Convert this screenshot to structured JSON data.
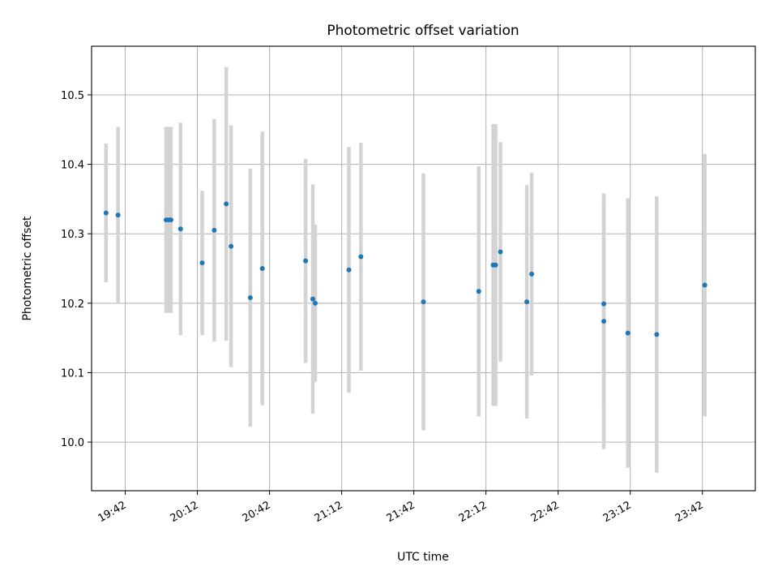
{
  "chart_data": {
    "type": "scatter",
    "title": "Photometric offset variation",
    "xlabel": "UTC time",
    "ylabel": "Photometric offset",
    "xlim": [
      "19:28",
      "24:04"
    ],
    "ylim": [
      9.93,
      10.57
    ],
    "x_ticks": [
      "19:42",
      "20:12",
      "20:42",
      "21:12",
      "21:42",
      "22:12",
      "22:42",
      "23:12",
      "23:42"
    ],
    "y_ticks": [
      10.0,
      10.1,
      10.2,
      10.3,
      10.4,
      10.5
    ],
    "grid": true,
    "colors": {
      "marker": "#1f77b4",
      "errorbar": "#d3d3d3",
      "grid": "#b0b0b0"
    },
    "series": [
      {
        "points": [
          {
            "x": "19:34",
            "y": 10.33,
            "err": 0.1
          },
          {
            "x": "19:39",
            "y": 10.327,
            "err": 0.127
          },
          {
            "x": "19:59",
            "y": 10.32,
            "err": 0.134
          },
          {
            "x": "20:00",
            "y": 10.32,
            "err": 0.134
          },
          {
            "x": "20:01",
            "y": 10.32,
            "err": 0.134
          },
          {
            "x": "20:05",
            "y": 10.307,
            "err": 0.153
          },
          {
            "x": "20:14",
            "y": 10.258,
            "err": 0.104
          },
          {
            "x": "20:19",
            "y": 10.305,
            "err": 0.16
          },
          {
            "x": "20:24",
            "y": 10.343,
            "err": 0.197
          },
          {
            "x": "20:26",
            "y": 10.282,
            "err": 0.174
          },
          {
            "x": "20:34",
            "y": 10.208,
            "err": 0.186
          },
          {
            "x": "20:39",
            "y": 10.25,
            "err": 0.197
          },
          {
            "x": "20:57",
            "y": 10.261,
            "err": 0.147
          },
          {
            "x": "21:00",
            "y": 10.206,
            "err": 0.165
          },
          {
            "x": "21:01",
            "y": 10.2,
            "err": 0.113
          },
          {
            "x": "21:15",
            "y": 10.248,
            "err": 0.177
          },
          {
            "x": "21:20",
            "y": 10.267,
            "err": 0.164
          },
          {
            "x": "21:46",
            "y": 10.202,
            "err": 0.185
          },
          {
            "x": "22:09",
            "y": 10.217,
            "err": 0.18
          },
          {
            "x": "22:15",
            "y": 10.255,
            "err": 0.203
          },
          {
            "x": "22:16",
            "y": 10.255,
            "err": 0.203
          },
          {
            "x": "22:18",
            "y": 10.274,
            "err": 0.158
          },
          {
            "x": "22:29",
            "y": 10.202,
            "err": 0.168
          },
          {
            "x": "22:31",
            "y": 10.242,
            "err": 0.146
          },
          {
            "x": "23:01",
            "y": 10.199,
            "err": 0.143
          },
          {
            "x": "23:01",
            "y": 10.174,
            "err": 0.184
          },
          {
            "x": "23:11",
            "y": 10.157,
            "err": 0.194
          },
          {
            "x": "23:23",
            "y": 10.155,
            "err": 0.199
          },
          {
            "x": "23:43",
            "y": 10.226,
            "err": 0.189
          }
        ]
      }
    ]
  }
}
